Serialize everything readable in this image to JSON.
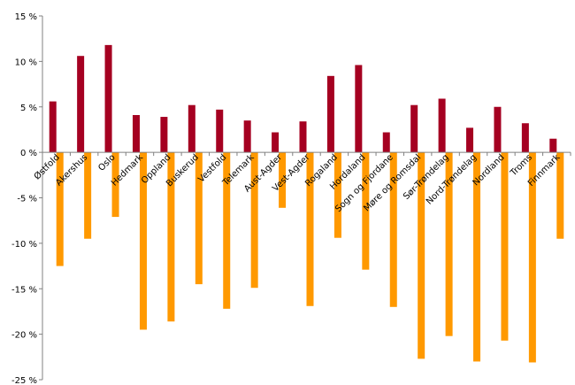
{
  "chart_data": {
    "type": "bar",
    "title": "",
    "xlabel": "",
    "ylabel": "",
    "ylim": [
      -25,
      15
    ],
    "yticks": [
      "15 %",
      "10 %",
      "5 %",
      "0 %",
      "-5 %",
      "-10 %",
      "-15 %",
      "-20 %",
      "-25 %"
    ],
    "ytick_values": [
      15,
      10,
      5,
      0,
      -5,
      -10,
      -15,
      -20,
      -25
    ],
    "grid": false,
    "categories": [
      "Østfold",
      "Akershus",
      "Oslo",
      "Hedmark",
      "Oppland",
      "Buskerud",
      "Vestfold",
      "Telemark",
      "Aust-Agder",
      "Vest-Agder",
      "Rogaland",
      "Hordaland",
      "Sogn og Fjordane",
      "Møre og Romsdal",
      "Sør-Trøndelag",
      "Nord-Trøndelag",
      "Nordland",
      "Troms",
      "Finnmark"
    ],
    "series": [
      {
        "color": "#a50021",
        "values": [
          5.6,
          10.6,
          11.8,
          4.1,
          3.9,
          5.2,
          4.7,
          3.5,
          2.2,
          3.4,
          8.4,
          9.6,
          2.2,
          5.2,
          5.9,
          2.7,
          5.0,
          3.2,
          1.5
        ]
      },
      {
        "color": "#ff9900",
        "values": [
          -12.5,
          -9.5,
          -7.1,
          -19.5,
          -18.6,
          -14.5,
          -17.2,
          -14.9,
          -6.1,
          -16.9,
          -9.4,
          -12.9,
          -17.0,
          -22.7,
          -20.2,
          -23.0,
          -20.7,
          -23.1,
          -9.5
        ]
      }
    ]
  }
}
